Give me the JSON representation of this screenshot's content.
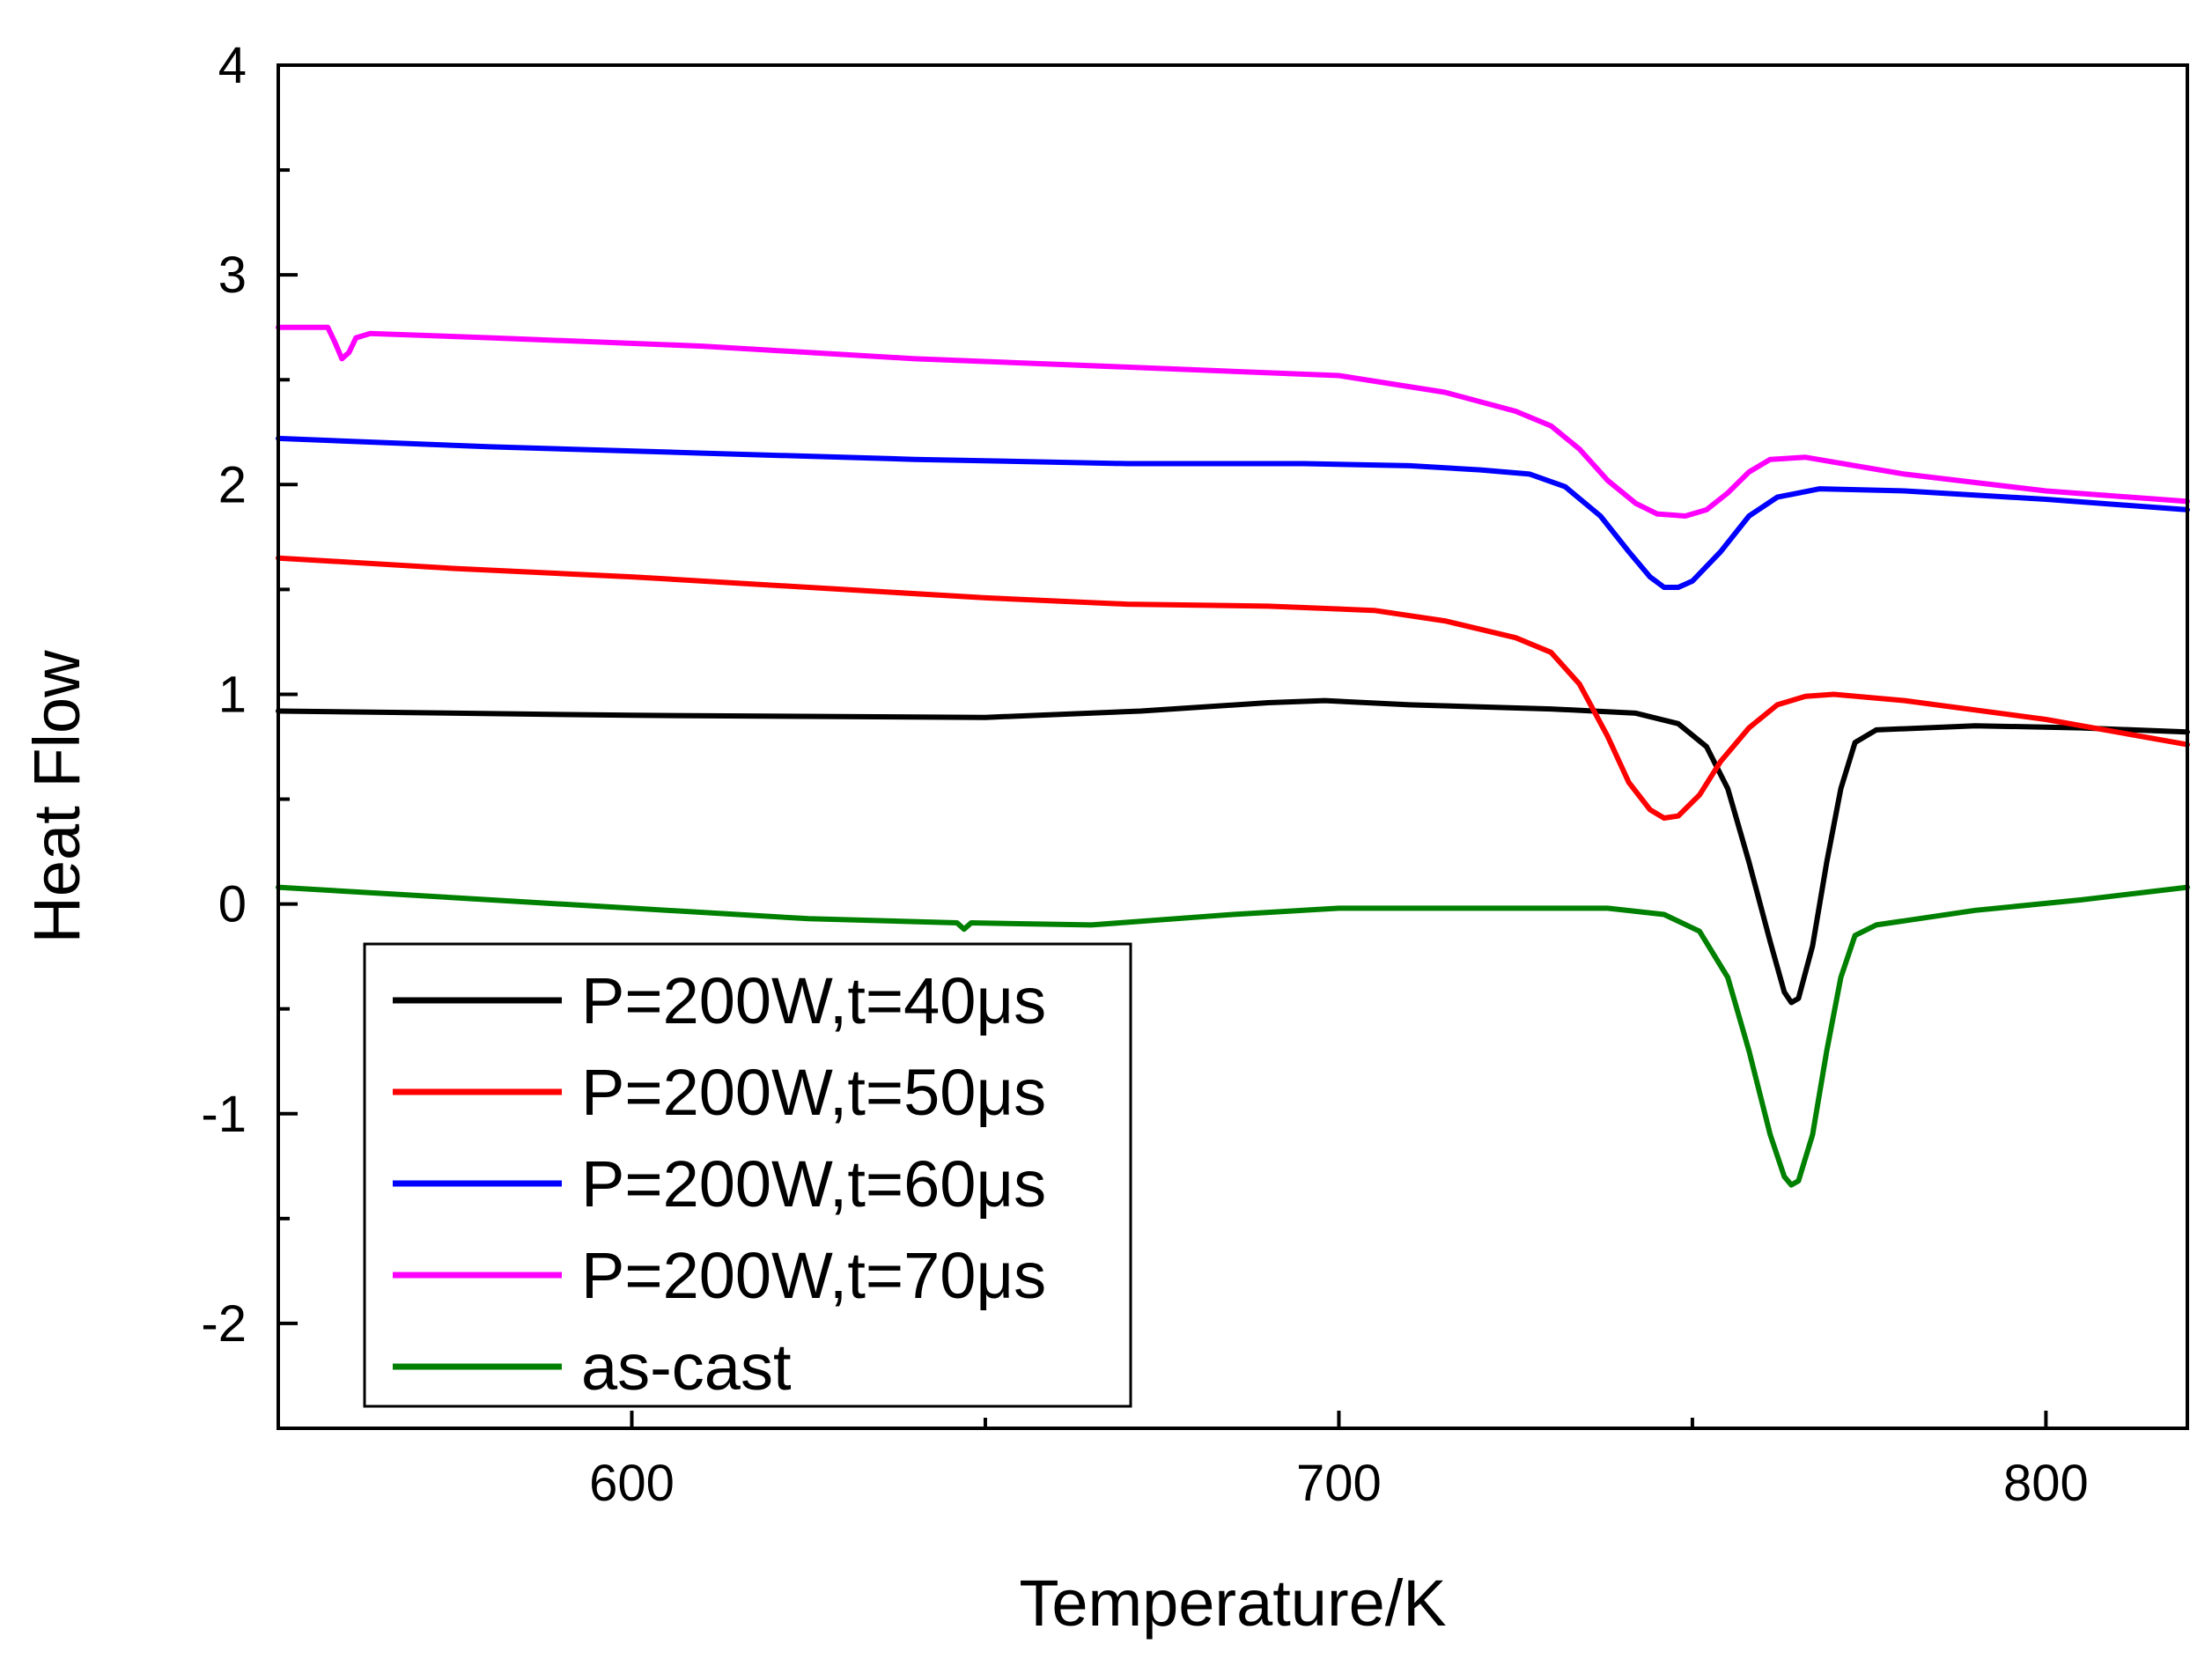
{
  "chart_data": {
    "type": "line",
    "title": "",
    "xlabel": "Temperature/K",
    "ylabel": "Heat Flow",
    "xlim": [
      550,
      820
    ],
    "ylim": [
      -2.5,
      4
    ],
    "xticks": [
      600,
      700,
      800
    ],
    "xtick_labels": [
      "600",
      "700",
      "800"
    ],
    "yticks": [
      -2,
      -1,
      0,
      1,
      2,
      3,
      4
    ],
    "ytick_labels": [
      "-2",
      "-1",
      "0",
      "1",
      "2",
      "3",
      "4"
    ],
    "grid": false,
    "legend_position": "bottom-left",
    "series": [
      {
        "name": "P=200W,t=40μs",
        "color": "#000000",
        "points": [
          [
            550,
            0.92
          ],
          [
            600,
            0.9
          ],
          [
            650,
            0.89
          ],
          [
            672,
            0.92
          ],
          [
            690,
            0.96
          ],
          [
            698,
            0.97
          ],
          [
            710,
            0.95
          ],
          [
            730,
            0.93
          ],
          [
            742,
            0.91
          ],
          [
            748,
            0.86
          ],
          [
            752,
            0.75
          ],
          [
            755,
            0.55
          ],
          [
            758,
            0.2
          ],
          [
            761,
            -0.18
          ],
          [
            763,
            -0.42
          ],
          [
            764,
            -0.47
          ],
          [
            765,
            -0.45
          ],
          [
            767,
            -0.2
          ],
          [
            769,
            0.2
          ],
          [
            771,
            0.55
          ],
          [
            773,
            0.77
          ],
          [
            776,
            0.83
          ],
          [
            790,
            0.85
          ],
          [
            805,
            0.84
          ],
          [
            820,
            0.82
          ]
        ]
      },
      {
        "name": "P=200W,t=50μs",
        "color": "#ff0000",
        "points": [
          [
            550,
            1.65
          ],
          [
            575,
            1.6
          ],
          [
            600,
            1.56
          ],
          [
            630,
            1.5
          ],
          [
            650,
            1.46
          ],
          [
            670,
            1.43
          ],
          [
            690,
            1.42
          ],
          [
            705,
            1.4
          ],
          [
            715,
            1.35
          ],
          [
            725,
            1.27
          ],
          [
            730,
            1.2
          ],
          [
            734,
            1.05
          ],
          [
            738,
            0.8
          ],
          [
            741,
            0.58
          ],
          [
            744,
            0.45
          ],
          [
            746,
            0.41
          ],
          [
            748,
            0.42
          ],
          [
            751,
            0.52
          ],
          [
            754,
            0.68
          ],
          [
            758,
            0.84
          ],
          [
            762,
            0.95
          ],
          [
            766,
            0.99
          ],
          [
            770,
            1.0
          ],
          [
            780,
            0.97
          ],
          [
            800,
            0.88
          ],
          [
            820,
            0.76
          ]
        ]
      },
      {
        "name": "P=200W,t=60μs",
        "color": "#0000ff",
        "points": [
          [
            550,
            2.22
          ],
          [
            580,
            2.18
          ],
          [
            610,
            2.15
          ],
          [
            640,
            2.12
          ],
          [
            670,
            2.1
          ],
          [
            695,
            2.1
          ],
          [
            710,
            2.09
          ],
          [
            720,
            2.07
          ],
          [
            727,
            2.05
          ],
          [
            732,
            1.99
          ],
          [
            737,
            1.85
          ],
          [
            741,
            1.68
          ],
          [
            744,
            1.56
          ],
          [
            746,
            1.51
          ],
          [
            748,
            1.51
          ],
          [
            750,
            1.54
          ],
          [
            754,
            1.68
          ],
          [
            758,
            1.85
          ],
          [
            762,
            1.94
          ],
          [
            768,
            1.98
          ],
          [
            780,
            1.97
          ],
          [
            800,
            1.93
          ],
          [
            820,
            1.88
          ]
        ]
      },
      {
        "name": "P=200W,t=70μs",
        "color": "#ff00ff",
        "points": [
          [
            550,
            2.75
          ],
          [
            557,
            2.75
          ],
          [
            558,
            2.68
          ],
          [
            559,
            2.6
          ],
          [
            560,
            2.63
          ],
          [
            561,
            2.7
          ],
          [
            563,
            2.72
          ],
          [
            580,
            2.7
          ],
          [
            610,
            2.66
          ],
          [
            640,
            2.6
          ],
          [
            670,
            2.56
          ],
          [
            700,
            2.52
          ],
          [
            715,
            2.44
          ],
          [
            725,
            2.35
          ],
          [
            730,
            2.28
          ],
          [
            734,
            2.17
          ],
          [
            738,
            2.02
          ],
          [
            742,
            1.91
          ],
          [
            745,
            1.86
          ],
          [
            749,
            1.85
          ],
          [
            752,
            1.88
          ],
          [
            755,
            1.96
          ],
          [
            758,
            2.06
          ],
          [
            761,
            2.12
          ],
          [
            766,
            2.13
          ],
          [
            780,
            2.05
          ],
          [
            800,
            1.97
          ],
          [
            820,
            1.92
          ]
        ]
      },
      {
        "name": "as-cast",
        "color": "#008000",
        "points": [
          [
            550,
            0.08
          ],
          [
            575,
            0.03
          ],
          [
            600,
            -0.02
          ],
          [
            625,
            -0.07
          ],
          [
            646,
            -0.09
          ],
          [
            647,
            -0.12
          ],
          [
            648,
            -0.09
          ],
          [
            665,
            -0.1
          ],
          [
            685,
            -0.05
          ],
          [
            700,
            -0.02
          ],
          [
            720,
            -0.02
          ],
          [
            738,
            -0.02
          ],
          [
            746,
            -0.05
          ],
          [
            751,
            -0.13
          ],
          [
            755,
            -0.35
          ],
          [
            758,
            -0.7
          ],
          [
            761,
            -1.1
          ],
          [
            763,
            -1.3
          ],
          [
            764,
            -1.34
          ],
          [
            765,
            -1.32
          ],
          [
            767,
            -1.1
          ],
          [
            769,
            -0.7
          ],
          [
            771,
            -0.35
          ],
          [
            773,
            -0.15
          ],
          [
            776,
            -0.1
          ],
          [
            790,
            -0.03
          ],
          [
            805,
            0.02
          ],
          [
            820,
            0.08
          ]
        ]
      }
    ]
  }
}
